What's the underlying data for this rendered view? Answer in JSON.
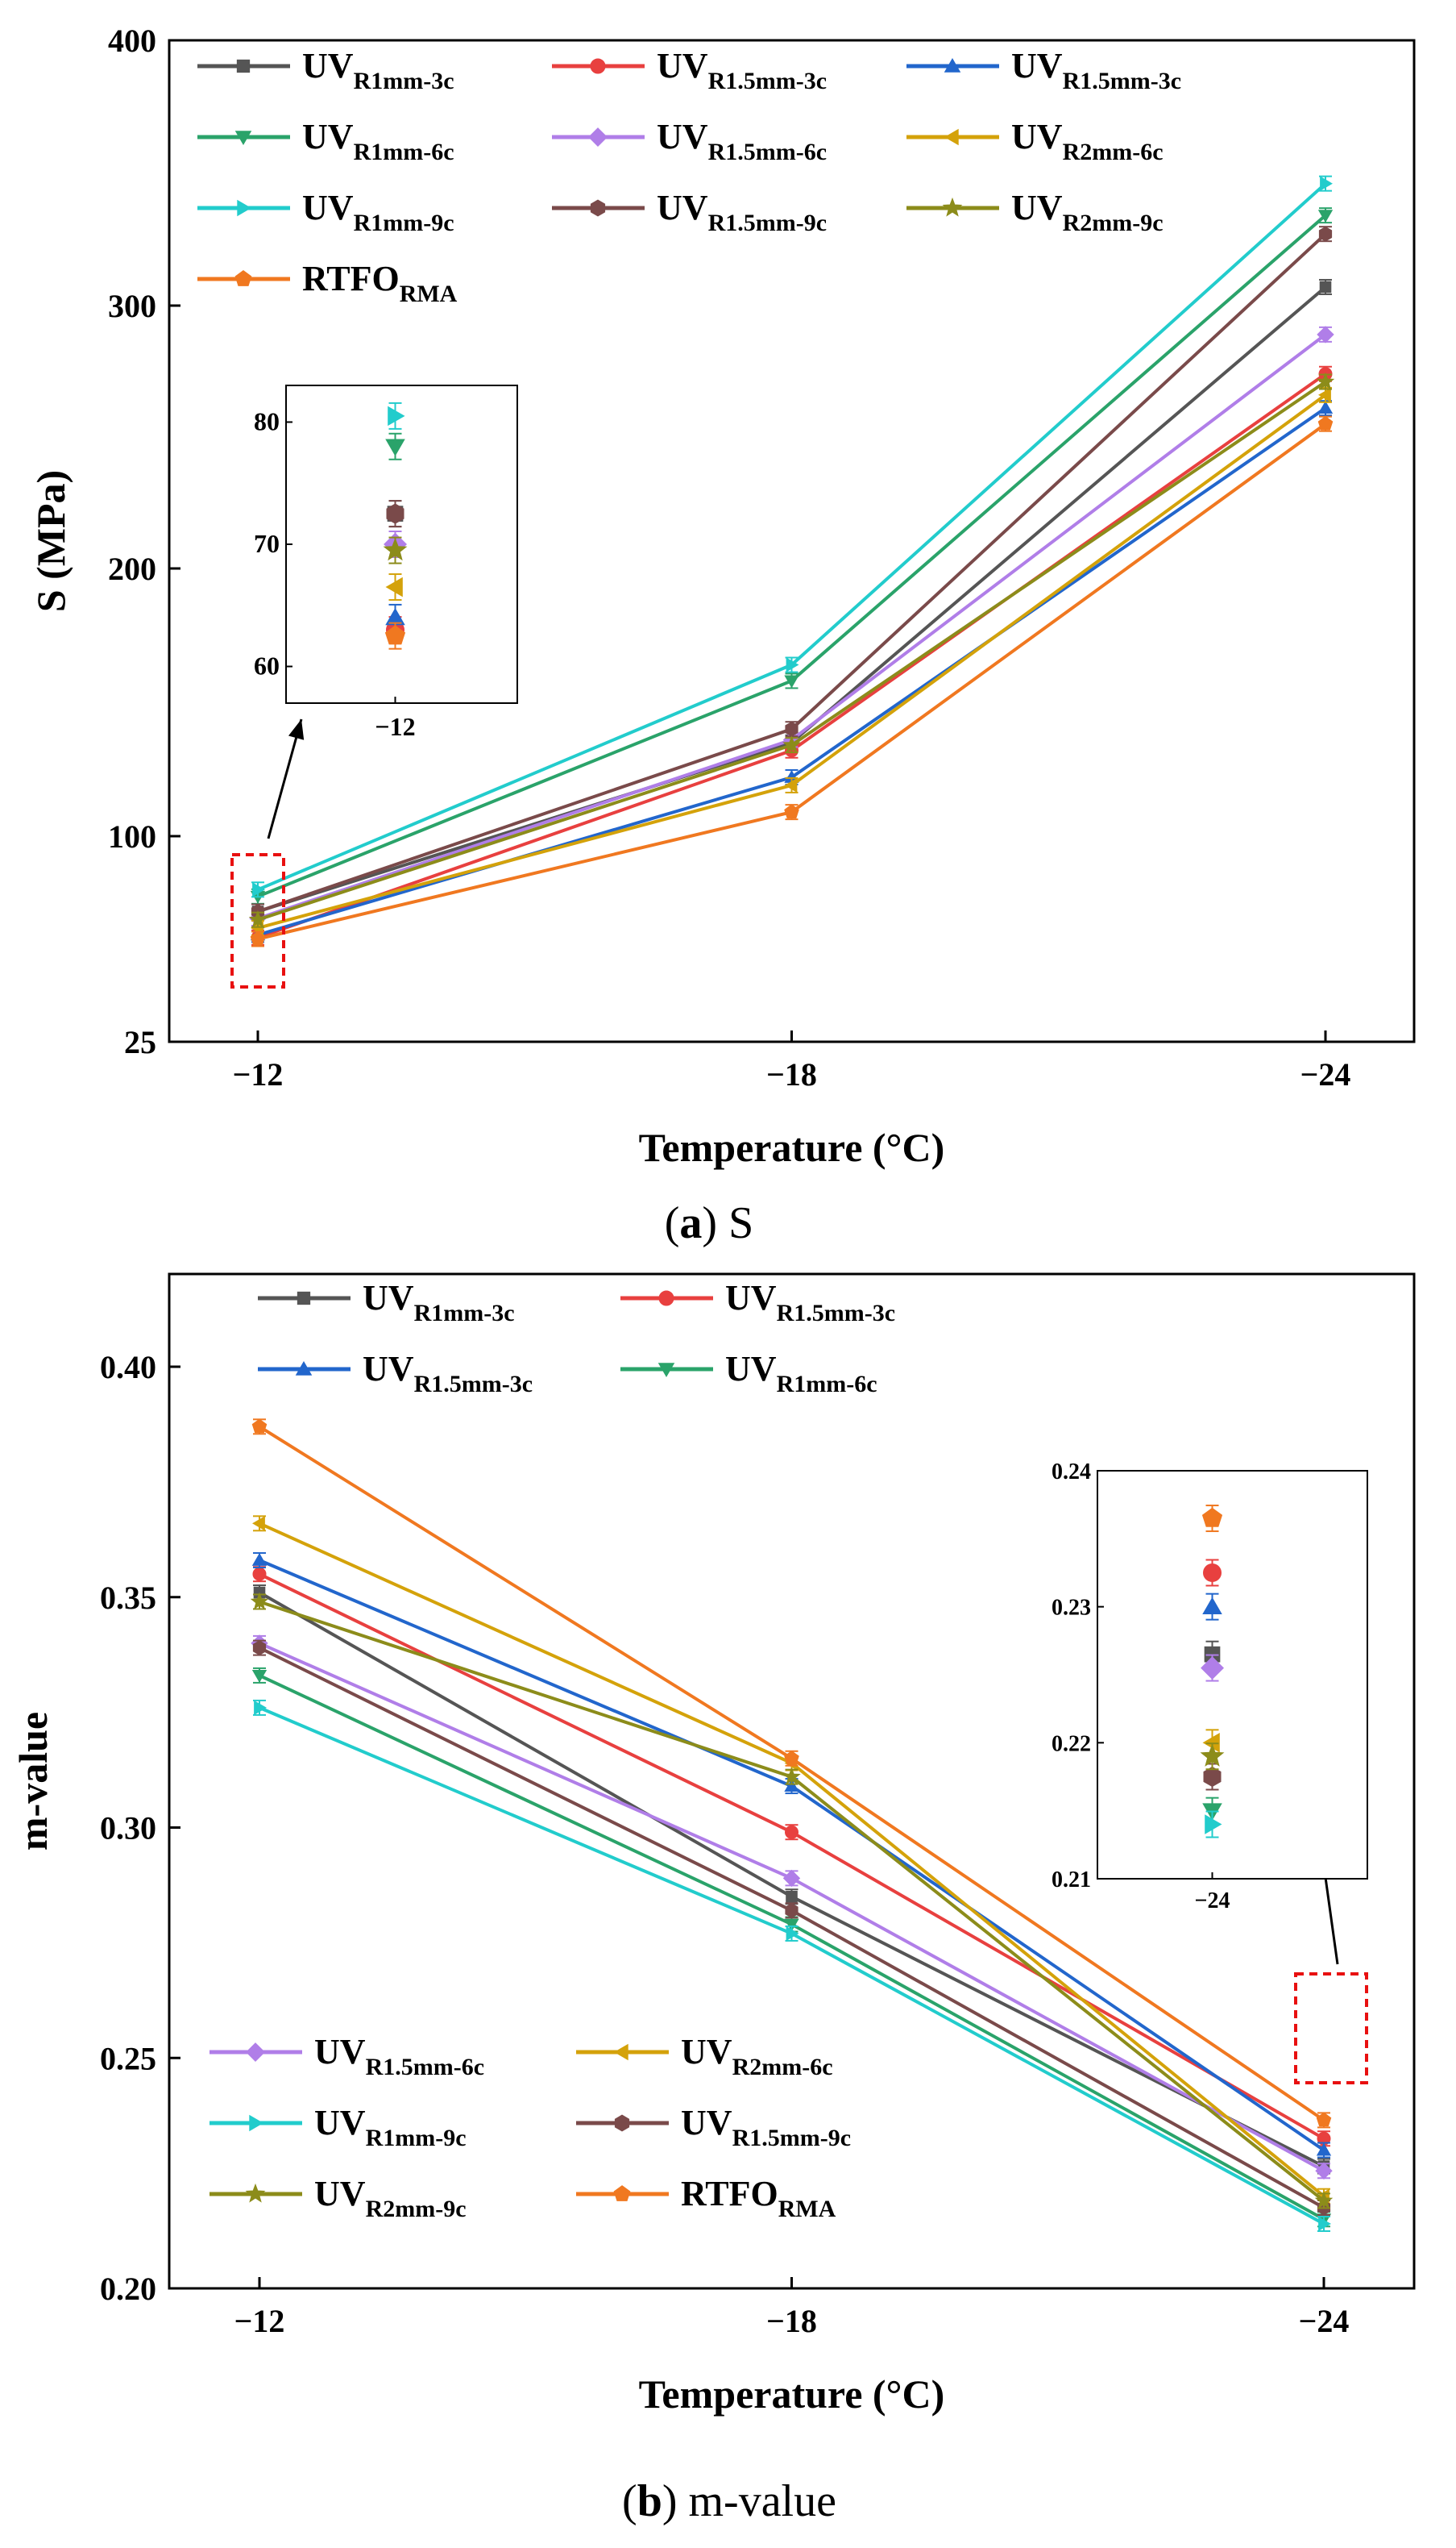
{
  "chart_data": [
    {
      "type": "line",
      "panel": "a",
      "caption_letter": "a",
      "caption_text": "S",
      "xlabel": "Temperature (°C)",
      "ylabel": "S (MPa)",
      "categories": [
        "−12",
        "−18",
        "−24"
      ],
      "yticks": [
        25,
        100,
        200,
        300,
        400
      ],
      "ylim": [
        25,
        400
      ],
      "legend_position": "top-left",
      "series": [
        {
          "key": "uv_r1mm_3c",
          "base": "UV",
          "sub": "R1mm-3c",
          "color": "#555555",
          "marker": "square",
          "values": [
            72.5,
            135,
            307
          ]
        },
        {
          "key": "uv_r15mm_3c",
          "base": "UV",
          "sub": "R1.5mm-3c",
          "color": "#e8403f",
          "marker": "circle",
          "values": [
            63,
            132,
            274
          ]
        },
        {
          "key": "uv_r15mm_3c_b",
          "base": "UV",
          "sub": "R1.5mm-3c",
          "color": "#2266cc",
          "marker": "triangle-up",
          "values": [
            64,
            122,
            261
          ]
        },
        {
          "key": "uv_r1mm_6c",
          "base": "UV",
          "sub": "R1mm-6c",
          "color": "#2aa36a",
          "marker": "triangle-down",
          "values": [
            78,
            158,
            334
          ]
        },
        {
          "key": "uv_r15mm_6c",
          "base": "UV",
          "sub": "R1.5mm-6c",
          "color": "#b07ee8",
          "marker": "diamond",
          "values": [
            70,
            136,
            289
          ]
        },
        {
          "key": "uv_r2mm_6c",
          "base": "UV",
          "sub": "R2mm-6c",
          "color": "#d4a20a",
          "marker": "triangle-left",
          "values": [
            66.5,
            119,
            266
          ]
        },
        {
          "key": "uv_r1mm_9c",
          "base": "UV",
          "sub": "R1mm-9c",
          "color": "#22cccc",
          "marker": "triangle-right",
          "values": [
            80.5,
            164,
            346
          ]
        },
        {
          "key": "uv_r15mm_9c",
          "base": "UV",
          "sub": "R1.5mm-9c",
          "color": "#7a4a4a",
          "marker": "hexagon",
          "values": [
            72.5,
            140,
            327
          ]
        },
        {
          "key": "uv_r2mm_9c",
          "base": "UV",
          "sub": "R2mm-9c",
          "color": "#8c8c1a",
          "marker": "star",
          "values": [
            69.5,
            134,
            271
          ]
        },
        {
          "key": "rtfo_rma",
          "base": "RTFO",
          "sub": "RMA",
          "color": "#f07820",
          "marker": "pentagon",
          "values": [
            62.5,
            109,
            255
          ]
        }
      ],
      "inset": {
        "category": "−12",
        "ylim": [
          57,
          83
        ],
        "yticks": [
          60,
          70,
          80
        ]
      }
    },
    {
      "type": "line",
      "panel": "b",
      "caption_letter": "b",
      "caption_text": "m-value",
      "xlabel": "Temperature (°C)",
      "ylabel": "m-value",
      "categories": [
        "−12",
        "−18",
        "−24"
      ],
      "yticks": [
        "0.20",
        "0.25",
        "0.30",
        "0.35",
        "0.40"
      ],
      "ylim": [
        0.2,
        0.42
      ],
      "legend_position": "top and bottom-left",
      "series": [
        {
          "key": "uv_r1mm_3c",
          "base": "UV",
          "sub": "R1mm-3c",
          "color": "#555555",
          "marker": "square",
          "values": [
            0.351,
            0.285,
            0.2265
          ]
        },
        {
          "key": "uv_r15mm_3c",
          "base": "UV",
          "sub": "R1.5mm-3c",
          "color": "#e8403f",
          "marker": "circle",
          "values": [
            0.355,
            0.299,
            0.2325
          ]
        },
        {
          "key": "uv_r15mm_3c_b",
          "base": "UV",
          "sub": "R1.5mm-3c",
          "color": "#2266cc",
          "marker": "triangle-up",
          "values": [
            0.358,
            0.309,
            0.23
          ]
        },
        {
          "key": "uv_r1mm_6c",
          "base": "UV",
          "sub": "R1mm-6c",
          "color": "#2aa36a",
          "marker": "triangle-down",
          "values": [
            0.333,
            0.279,
            0.215
          ]
        },
        {
          "key": "uv_r15mm_6c",
          "base": "UV",
          "sub": "R1.5mm-6c",
          "color": "#b07ee8",
          "marker": "diamond",
          "values": [
            0.34,
            0.289,
            0.2255
          ]
        },
        {
          "key": "uv_r2mm_6c",
          "base": "UV",
          "sub": "R2mm-6c",
          "color": "#d4a20a",
          "marker": "triangle-left",
          "values": [
            0.366,
            0.314,
            0.22
          ]
        },
        {
          "key": "uv_r1mm_9c",
          "base": "UV",
          "sub": "R1mm-9c",
          "color": "#22cccc",
          "marker": "triangle-right",
          "values": [
            0.326,
            0.277,
            0.214
          ]
        },
        {
          "key": "uv_r15mm_9c",
          "base": "UV",
          "sub": "R1.5mm-9c",
          "color": "#7a4a4a",
          "marker": "hexagon",
          "values": [
            0.339,
            0.282,
            0.2175
          ]
        },
        {
          "key": "uv_r2mm_9c",
          "base": "UV",
          "sub": "R2mm-9c",
          "color": "#8c8c1a",
          "marker": "star",
          "values": [
            0.349,
            0.311,
            0.219
          ]
        },
        {
          "key": "rtfo_rma",
          "base": "RTFO",
          "sub": "RMA",
          "color": "#f07820",
          "marker": "pentagon",
          "values": [
            0.387,
            0.315,
            0.2365
          ]
        }
      ],
      "inset": {
        "category": "−24",
        "ylim": [
          0.21,
          0.24
        ],
        "yticks": [
          "0.21",
          "0.22",
          "0.23",
          "0.24"
        ]
      }
    }
  ]
}
